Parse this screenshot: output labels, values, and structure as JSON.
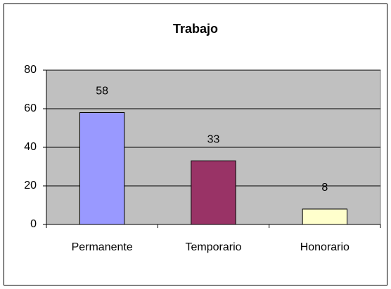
{
  "chart_data": {
    "type": "bar",
    "title": "Trabajo",
    "categories": [
      "Permanente",
      "Temporario",
      "Honorario"
    ],
    "values": [
      58,
      33,
      8
    ],
    "colors": [
      "#9999ff",
      "#993366",
      "#ffffcc"
    ],
    "ylim": [
      0,
      80
    ],
    "yticks": [
      0,
      20,
      40,
      60,
      80
    ],
    "grid": true,
    "data_labels": true
  }
}
